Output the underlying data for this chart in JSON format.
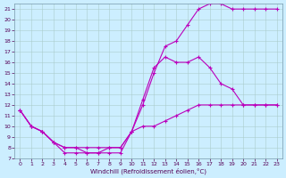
{
  "title": "",
  "xlabel": "Windchill (Refroidissement éolien,°C)",
  "ylabel": "",
  "background_color": "#cceeff",
  "line_color": "#bb00bb",
  "grid_color": "#aacccc",
  "xlim": [
    -0.5,
    23.5
  ],
  "ylim": [
    7,
    21.5
  ],
  "yticks": [
    7,
    8,
    9,
    10,
    11,
    12,
    13,
    14,
    15,
    16,
    17,
    18,
    19,
    20,
    21
  ],
  "xticks": [
    0,
    1,
    2,
    3,
    4,
    5,
    6,
    7,
    8,
    9,
    10,
    11,
    12,
    13,
    14,
    15,
    16,
    17,
    18,
    19,
    20,
    21,
    22,
    23
  ],
  "series": [
    {
      "x": [
        0,
        1,
        2,
        3,
        4,
        5,
        6,
        7,
        8,
        9,
        10,
        11,
        12,
        13,
        14,
        15,
        16,
        17,
        18,
        19,
        20,
        21,
        22,
        23
      ],
      "y": [
        11.5,
        10,
        9.5,
        8.5,
        7.5,
        7.5,
        7.5,
        7.5,
        7.5,
        7.5,
        9.5,
        12,
        15,
        17.5,
        18,
        19.5,
        21,
        21.5,
        21.5,
        21,
        21,
        21,
        21,
        21
      ]
    },
    {
      "x": [
        0,
        1,
        2,
        3,
        4,
        5,
        6,
        7,
        8,
        9,
        10,
        11,
        12,
        13,
        14,
        15,
        16,
        17,
        18,
        19,
        20,
        21,
        22,
        23
      ],
      "y": [
        11.5,
        10,
        9.5,
        8.5,
        8,
        8,
        7.5,
        7.5,
        8,
        8,
        9.5,
        12.5,
        15.5,
        16.5,
        16,
        16,
        16.5,
        15.5,
        14,
        13.5,
        12,
        12,
        12,
        12
      ]
    },
    {
      "x": [
        0,
        1,
        2,
        3,
        4,
        5,
        6,
        7,
        8,
        9,
        10,
        11,
        12,
        13,
        14,
        15,
        16,
        17,
        18,
        19,
        20,
        21,
        22,
        23
      ],
      "y": [
        11.5,
        10,
        9.5,
        8.5,
        8,
        8,
        8,
        8,
        8,
        8,
        9.5,
        10,
        10,
        10.5,
        11,
        11.5,
        12,
        12,
        12,
        12,
        12,
        12,
        12,
        12
      ]
    }
  ]
}
